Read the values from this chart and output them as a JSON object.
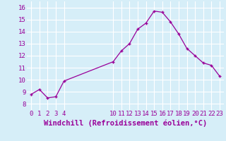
{
  "x": [
    0,
    1,
    2,
    3,
    4,
    10,
    11,
    12,
    13,
    14,
    15,
    16,
    17,
    18,
    19,
    20,
    21,
    22,
    23
  ],
  "y": [
    8.8,
    9.2,
    8.5,
    8.6,
    9.9,
    11.5,
    12.4,
    13.0,
    14.2,
    14.7,
    15.7,
    15.6,
    14.8,
    13.8,
    12.6,
    12.0,
    11.4,
    11.2,
    10.3
  ],
  "line_color": "#990099",
  "marker": "+",
  "bg_color": "#d6eef8",
  "grid_color": "#ffffff",
  "xlabel": "Windchill (Refroidissement éolien,°C)",
  "xlabel_color": "#990099",
  "xticks": [
    0,
    1,
    2,
    3,
    4,
    10,
    11,
    12,
    13,
    14,
    15,
    16,
    17,
    18,
    19,
    20,
    21,
    22,
    23
  ],
  "yticks": [
    8,
    9,
    10,
    11,
    12,
    13,
    14,
    15,
    16
  ],
  "ylim": [
    7.5,
    16.5
  ],
  "xlim": [
    -0.5,
    23.5
  ],
  "tick_color": "#990099",
  "tick_labelsize": 6.5,
  "xlabel_fontsize": 7.5
}
